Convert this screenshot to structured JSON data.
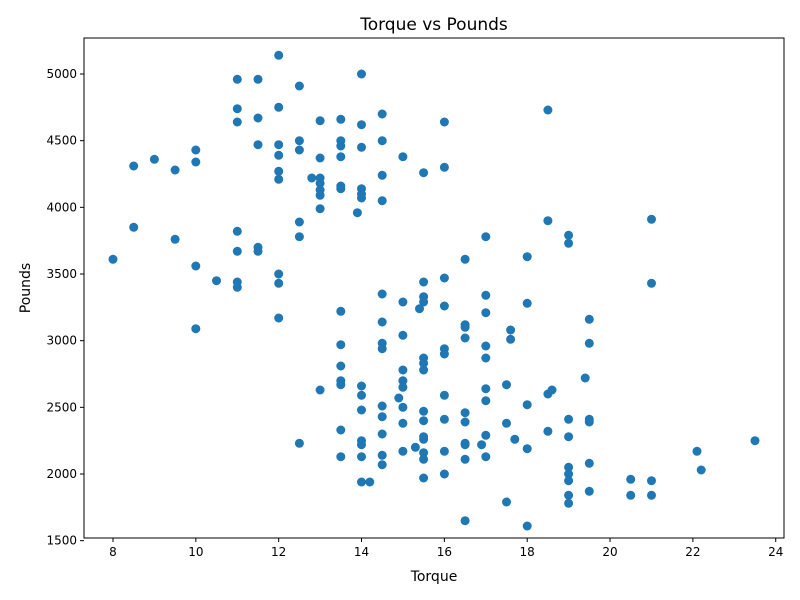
{
  "chart_data": {
    "type": "scatter",
    "title": "Torque vs Pounds",
    "xlabel": "Torque",
    "ylabel": "Pounds",
    "xlim": [
      7.3,
      24.2
    ],
    "ylim": [
      1520,
      5270
    ],
    "xticks": [
      8,
      10,
      12,
      14,
      16,
      18,
      20,
      22,
      24
    ],
    "yticks": [
      1500,
      2000,
      2500,
      3000,
      3500,
      4000,
      4500,
      5000
    ],
    "grid": false,
    "marker_color": "#1f77b4",
    "points": [
      [
        8.0,
        3610
      ],
      [
        8.5,
        4310
      ],
      [
        8.5,
        3850
      ],
      [
        9.0,
        4360
      ],
      [
        9.5,
        4280
      ],
      [
        9.5,
        3760
      ],
      [
        10.0,
        4430
      ],
      [
        10.0,
        4340
      ],
      [
        10.0,
        3560
      ],
      [
        10.0,
        3090
      ],
      [
        10.5,
        3450
      ],
      [
        11.0,
        4960
      ],
      [
        11.0,
        4740
      ],
      [
        11.0,
        4640
      ],
      [
        11.0,
        3820
      ],
      [
        11.0,
        3670
      ],
      [
        11.0,
        3440
      ],
      [
        11.0,
        3400
      ],
      [
        11.5,
        4960
      ],
      [
        11.5,
        4670
      ],
      [
        11.5,
        4470
      ],
      [
        11.5,
        3700
      ],
      [
        11.5,
        3670
      ],
      [
        12.0,
        5140
      ],
      [
        12.0,
        4750
      ],
      [
        12.0,
        4470
      ],
      [
        12.0,
        4390
      ],
      [
        12.0,
        4270
      ],
      [
        12.0,
        4210
      ],
      [
        12.0,
        3500
      ],
      [
        12.0,
        3430
      ],
      [
        12.0,
        3170
      ],
      [
        12.5,
        4910
      ],
      [
        12.5,
        4500
      ],
      [
        12.5,
        4430
      ],
      [
        12.5,
        3890
      ],
      [
        12.5,
        3780
      ],
      [
        12.5,
        2230
      ],
      [
        12.8,
        4220
      ],
      [
        13.0,
        4650
      ],
      [
        13.0,
        4370
      ],
      [
        13.0,
        4220
      ],
      [
        13.0,
        4180
      ],
      [
        13.0,
        4130
      ],
      [
        13.0,
        4090
      ],
      [
        13.0,
        3990
      ],
      [
        13.0,
        2630
      ],
      [
        13.5,
        4660
      ],
      [
        13.5,
        4500
      ],
      [
        13.5,
        4460
      ],
      [
        13.5,
        4380
      ],
      [
        13.5,
        4160
      ],
      [
        13.5,
        4140
      ],
      [
        13.5,
        3220
      ],
      [
        13.5,
        2970
      ],
      [
        13.5,
        2810
      ],
      [
        13.5,
        2700
      ],
      [
        13.5,
        2670
      ],
      [
        13.5,
        2330
      ],
      [
        13.5,
        2130
      ],
      [
        13.9,
        3960
      ],
      [
        14.0,
        5000
      ],
      [
        14.0,
        4620
      ],
      [
        14.0,
        4450
      ],
      [
        14.0,
        4140
      ],
      [
        14.0,
        4100
      ],
      [
        14.0,
        4070
      ],
      [
        14.0,
        2660
      ],
      [
        14.0,
        2590
      ],
      [
        14.0,
        2480
      ],
      [
        14.0,
        2250
      ],
      [
        14.0,
        2220
      ],
      [
        14.0,
        2130
      ],
      [
        14.0,
        1940
      ],
      [
        14.2,
        1940
      ],
      [
        14.5,
        4700
      ],
      [
        14.5,
        4500
      ],
      [
        14.5,
        4240
      ],
      [
        14.5,
        4050
      ],
      [
        14.5,
        3350
      ],
      [
        14.5,
        3140
      ],
      [
        14.5,
        2980
      ],
      [
        14.5,
        2940
      ],
      [
        14.5,
        2510
      ],
      [
        14.5,
        2430
      ],
      [
        14.5,
        2300
      ],
      [
        14.5,
        2140
      ],
      [
        14.5,
        2070
      ],
      [
        14.9,
        2570
      ],
      [
        15.0,
        4380
      ],
      [
        15.0,
        3290
      ],
      [
        15.0,
        3040
      ],
      [
        15.0,
        2780
      ],
      [
        15.0,
        2700
      ],
      [
        15.0,
        2650
      ],
      [
        15.0,
        2500
      ],
      [
        15.0,
        2380
      ],
      [
        15.0,
        2170
      ],
      [
        15.3,
        2200
      ],
      [
        15.4,
        3240
      ],
      [
        15.5,
        4260
      ],
      [
        15.5,
        3440
      ],
      [
        15.5,
        3330
      ],
      [
        15.5,
        3290
      ],
      [
        15.5,
        2870
      ],
      [
        15.5,
        2830
      ],
      [
        15.5,
        2780
      ],
      [
        15.5,
        2470
      ],
      [
        15.5,
        2400
      ],
      [
        15.5,
        2280
      ],
      [
        15.5,
        2260
      ],
      [
        15.5,
        2160
      ],
      [
        15.5,
        2110
      ],
      [
        15.5,
        1970
      ],
      [
        16.0,
        4640
      ],
      [
        16.0,
        4300
      ],
      [
        16.0,
        3470
      ],
      [
        16.0,
        3260
      ],
      [
        16.0,
        2940
      ],
      [
        16.0,
        2900
      ],
      [
        16.0,
        2590
      ],
      [
        16.0,
        2410
      ],
      [
        16.0,
        2170
      ],
      [
        16.0,
        2000
      ],
      [
        16.5,
        3610
      ],
      [
        16.5,
        3120
      ],
      [
        16.5,
        3100
      ],
      [
        16.5,
        3020
      ],
      [
        16.5,
        2460
      ],
      [
        16.5,
        2390
      ],
      [
        16.5,
        2230
      ],
      [
        16.5,
        2220
      ],
      [
        16.5,
        2110
      ],
      [
        16.5,
        1650
      ],
      [
        16.9,
        2220
      ],
      [
        17.0,
        3780
      ],
      [
        17.0,
        3340
      ],
      [
        17.0,
        3210
      ],
      [
        17.0,
        2960
      ],
      [
        17.0,
        2870
      ],
      [
        17.0,
        2640
      ],
      [
        17.0,
        2550
      ],
      [
        17.0,
        2290
      ],
      [
        17.0,
        2130
      ],
      [
        17.5,
        2670
      ],
      [
        17.5,
        2380
      ],
      [
        17.5,
        1790
      ],
      [
        17.6,
        3080
      ],
      [
        17.6,
        3010
      ],
      [
        17.7,
        2260
      ],
      [
        18.0,
        3630
      ],
      [
        18.0,
        3280
      ],
      [
        18.0,
        2520
      ],
      [
        18.0,
        2190
      ],
      [
        18.0,
        1610
      ],
      [
        18.5,
        4730
      ],
      [
        18.5,
        3900
      ],
      [
        18.5,
        2600
      ],
      [
        18.5,
        2320
      ],
      [
        18.6,
        2630
      ],
      [
        19.0,
        3790
      ],
      [
        19.0,
        3730
      ],
      [
        19.0,
        2410
      ],
      [
        19.0,
        2280
      ],
      [
        19.0,
        2050
      ],
      [
        19.0,
        2000
      ],
      [
        19.0,
        1950
      ],
      [
        19.0,
        1840
      ],
      [
        19.0,
        1780
      ],
      [
        19.4,
        2720
      ],
      [
        19.5,
        3160
      ],
      [
        19.5,
        2980
      ],
      [
        19.5,
        2410
      ],
      [
        19.5,
        2390
      ],
      [
        19.5,
        2080
      ],
      [
        19.5,
        1870
      ],
      [
        20.5,
        1960
      ],
      [
        20.5,
        1840
      ],
      [
        21.0,
        3910
      ],
      [
        21.0,
        3430
      ],
      [
        21.0,
        1950
      ],
      [
        21.0,
        1840
      ],
      [
        22.1,
        2170
      ],
      [
        22.2,
        2030
      ],
      [
        23.5,
        2250
      ]
    ]
  }
}
